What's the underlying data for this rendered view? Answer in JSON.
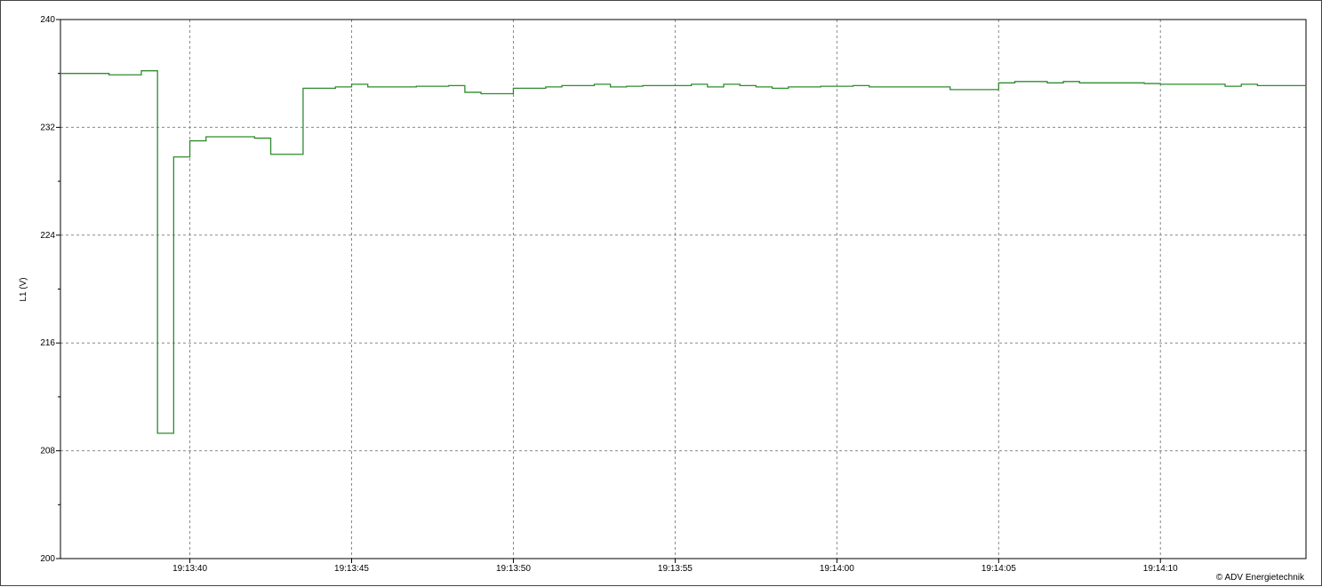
{
  "chart_data": {
    "type": "line",
    "step": true,
    "title": "",
    "xlabel": "",
    "ylabel": "L1 (V)",
    "ylim": [
      200,
      240
    ],
    "yticks": [
      200,
      208,
      216,
      224,
      232,
      240
    ],
    "yminor_step": 4,
    "xlim": [
      "19:13:36",
      "19:14:14.5"
    ],
    "xticks": [
      "19:13:40",
      "19:13:45",
      "19:13:50",
      "19:13:55",
      "19:14:00",
      "19:14:05",
      "19:14:10"
    ],
    "grid": true,
    "line_color": "#2e8b2e",
    "series": [
      {
        "points": [
          [
            "19:13:36",
            236.0
          ],
          [
            "19:13:37.5",
            235.9
          ],
          [
            "19:13:38.5",
            236.2
          ],
          [
            "19:13:39",
            209.3
          ],
          [
            "19:13:39.5",
            229.8
          ],
          [
            "19:13:40",
            231.0
          ],
          [
            "19:13:40.5",
            231.3
          ],
          [
            "19:13:42",
            231.2
          ],
          [
            "19:13:42.5",
            230.0
          ],
          [
            "19:13:43.5",
            234.9
          ],
          [
            "19:13:44.5",
            235.0
          ],
          [
            "19:13:45",
            235.2
          ],
          [
            "19:13:45.5",
            235.0
          ],
          [
            "19:13:47",
            235.05
          ],
          [
            "19:13:48",
            235.1
          ],
          [
            "19:13:48.5",
            234.6
          ],
          [
            "19:13:49",
            234.5
          ],
          [
            "19:13:50",
            234.9
          ],
          [
            "19:13:51",
            235.0
          ],
          [
            "19:13:51.5",
            235.1
          ],
          [
            "19:13:52.5",
            235.2
          ],
          [
            "19:13:53",
            235.0
          ],
          [
            "19:13:53.5",
            235.05
          ],
          [
            "19:13:54",
            235.1
          ],
          [
            "19:13:55.5",
            235.2
          ],
          [
            "19:13:56",
            235.0
          ],
          [
            "19:13:56.5",
            235.2
          ],
          [
            "19:13:57",
            235.1
          ],
          [
            "19:13:57.5",
            235.0
          ],
          [
            "19:13:58",
            234.9
          ],
          [
            "19:13:58.5",
            235.0
          ],
          [
            "19:13:59.5",
            235.05
          ],
          [
            "19:14:00.5",
            235.1
          ],
          [
            "19:14:01",
            235.0
          ],
          [
            "19:14:03.5",
            234.8
          ],
          [
            "19:14:05",
            235.3
          ],
          [
            "19:14:05.5",
            235.4
          ],
          [
            "19:14:06.5",
            235.3
          ],
          [
            "19:14:07",
            235.4
          ],
          [
            "19:14:07.5",
            235.3
          ],
          [
            "19:14:09.5",
            235.25
          ],
          [
            "19:14:10",
            235.2
          ],
          [
            "19:14:12",
            235.05
          ],
          [
            "19:14:12.5",
            235.2
          ],
          [
            "19:14:13",
            235.1
          ],
          [
            "19:14:14.5",
            235.1
          ]
        ]
      }
    ],
    "annotations": [
      "© ADV Energietechnik"
    ]
  }
}
